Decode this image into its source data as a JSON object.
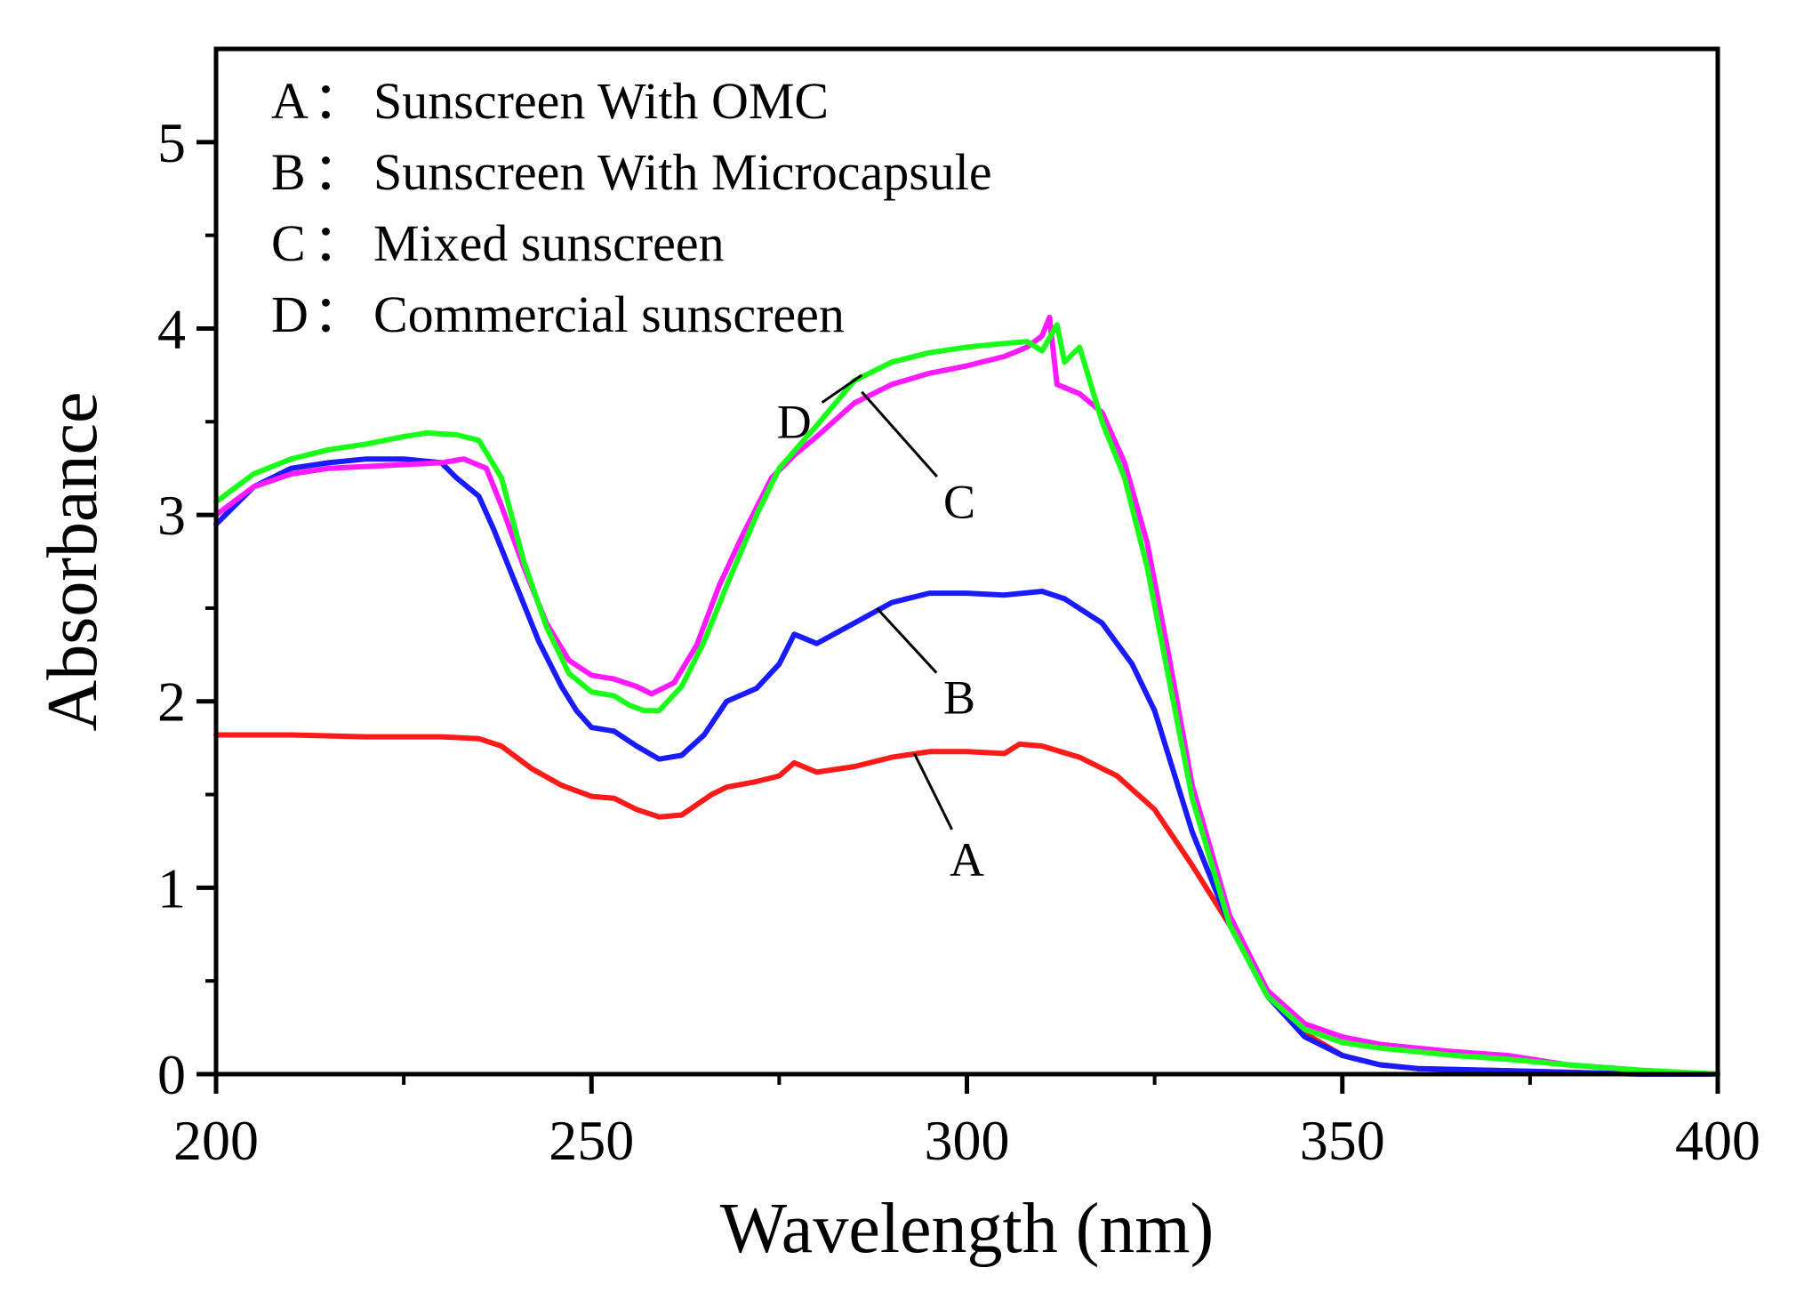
{
  "chart_data": {
    "type": "line",
    "title": "",
    "xlabel": "Wavelength (nm)",
    "ylabel": "Absorbance",
    "xlim": [
      200,
      400
    ],
    "ylim": [
      0,
      5.5
    ],
    "xticks": [
      200,
      250,
      300,
      350,
      400
    ],
    "yticks": [
      0,
      1,
      2,
      3,
      4,
      5
    ],
    "grid": false,
    "legend": {
      "placement": "top-left",
      "entries": [
        {
          "letter": "A",
          "text": "Sunscreen With OMC"
        },
        {
          "letter": "B",
          "text": "Sunscreen With Microcapsule"
        },
        {
          "letter": "C",
          "text": "Mixed sunscreen"
        },
        {
          "letter": "D",
          "text": "Commercial sunscreen"
        }
      ]
    },
    "series": [
      {
        "name": "A",
        "color": "#ff1a1a",
        "callout_at": [
          293,
          1.72
        ],
        "callout_label_at": [
          300,
          1.15
        ],
        "x": [
          200,
          210,
          220,
          230,
          235,
          238,
          242,
          246,
          250,
          253,
          256,
          259,
          262,
          266,
          268,
          272,
          275,
          277,
          280,
          285,
          290,
          295,
          300,
          305,
          307,
          310,
          315,
          320,
          325,
          330,
          335,
          340,
          345,
          350,
          355,
          360,
          370,
          380,
          390,
          400
        ],
        "y": [
          1.82,
          1.82,
          1.81,
          1.81,
          1.8,
          1.76,
          1.64,
          1.55,
          1.49,
          1.48,
          1.42,
          1.38,
          1.39,
          1.5,
          1.54,
          1.57,
          1.6,
          1.67,
          1.62,
          1.65,
          1.7,
          1.73,
          1.73,
          1.72,
          1.77,
          1.76,
          1.7,
          1.6,
          1.42,
          1.12,
          0.8,
          0.45,
          0.22,
          0.1,
          0.05,
          0.03,
          0.02,
          0.01,
          0.0,
          0.0
        ]
      },
      {
        "name": "B",
        "color": "#1a1aff",
        "callout_at": [
          288,
          2.5
        ],
        "callout_label_at": [
          299,
          2.02
        ],
        "x": [
          200,
          205,
          210,
          215,
          220,
          225,
          230,
          232,
          235,
          237,
          240,
          243,
          246,
          248,
          250,
          253,
          256,
          259,
          262,
          265,
          268,
          272,
          275,
          277,
          280,
          285,
          290,
          295,
          300,
          305,
          310,
          313,
          318,
          322,
          325,
          330,
          335,
          340,
          345,
          350,
          355,
          360,
          370,
          380,
          390,
          400
        ],
        "y": [
          2.95,
          3.15,
          3.25,
          3.28,
          3.3,
          3.3,
          3.28,
          3.2,
          3.1,
          2.92,
          2.62,
          2.32,
          2.08,
          1.95,
          1.86,
          1.84,
          1.76,
          1.69,
          1.71,
          1.82,
          2.0,
          2.07,
          2.2,
          2.36,
          2.31,
          2.42,
          2.53,
          2.58,
          2.58,
          2.57,
          2.59,
          2.55,
          2.42,
          2.2,
          1.95,
          1.3,
          0.8,
          0.42,
          0.2,
          0.1,
          0.05,
          0.03,
          0.02,
          0.01,
          0.0,
          0.0
        ]
      },
      {
        "name": "C",
        "color": "#ff1aff",
        "callout_at": [
          286,
          3.66
        ],
        "callout_label_at": [
          299,
          3.07
        ],
        "x": [
          200,
          205,
          210,
          215,
          220,
          225,
          230,
          233,
          236,
          238,
          241,
          244,
          247,
          250,
          253,
          256,
          258,
          261,
          264,
          267,
          270,
          274,
          277,
          280,
          285,
          290,
          295,
          300,
          305,
          308,
          310,
          311,
          312,
          315,
          318,
          321,
          324,
          327,
          330,
          335,
          340,
          345,
          350,
          355,
          360,
          365,
          372,
          380,
          390,
          400
        ],
        "y": [
          3.0,
          3.15,
          3.22,
          3.25,
          3.26,
          3.27,
          3.28,
          3.3,
          3.25,
          3.05,
          2.72,
          2.42,
          2.22,
          2.14,
          2.12,
          2.08,
          2.04,
          2.1,
          2.3,
          2.62,
          2.88,
          3.2,
          3.32,
          3.42,
          3.6,
          3.7,
          3.76,
          3.8,
          3.85,
          3.9,
          3.96,
          4.06,
          3.7,
          3.65,
          3.55,
          3.28,
          2.85,
          2.22,
          1.55,
          0.85,
          0.45,
          0.27,
          0.2,
          0.16,
          0.14,
          0.12,
          0.1,
          0.05,
          0.02,
          0.0
        ]
      },
      {
        "name": "D",
        "color": "#1aff1a",
        "callout_at": [
          286,
          3.75
        ],
        "callout_label_at": [
          277,
          3.5
        ],
        "x": [
          200,
          205,
          210,
          215,
          220,
          225,
          228,
          232,
          235,
          238,
          241,
          244,
          247,
          250,
          253,
          255,
          257,
          259,
          262,
          265,
          268,
          272,
          275,
          280,
          285,
          290,
          295,
          300,
          305,
          308,
          310,
          312,
          313,
          315,
          318,
          321,
          324,
          327,
          330,
          335,
          340,
          345,
          350,
          355,
          360,
          365,
          372,
          380,
          390,
          400
        ],
        "y": [
          3.07,
          3.22,
          3.3,
          3.35,
          3.38,
          3.42,
          3.44,
          3.43,
          3.4,
          3.2,
          2.75,
          2.4,
          2.15,
          2.05,
          2.03,
          1.98,
          1.95,
          1.95,
          2.08,
          2.32,
          2.62,
          3.0,
          3.25,
          3.48,
          3.72,
          3.82,
          3.87,
          3.9,
          3.92,
          3.93,
          3.88,
          4.02,
          3.82,
          3.9,
          3.5,
          3.2,
          2.72,
          2.1,
          1.48,
          0.8,
          0.42,
          0.24,
          0.17,
          0.14,
          0.12,
          0.1,
          0.08,
          0.05,
          0.02,
          0.0
        ]
      }
    ]
  }
}
